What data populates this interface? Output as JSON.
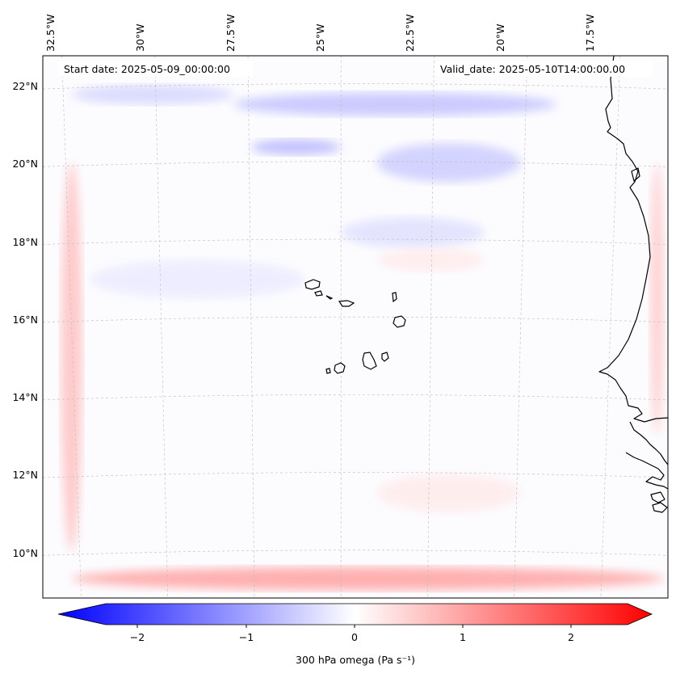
{
  "map": {
    "start_date_label": "Start date: 2025-05-09_00:00:00",
    "valid_date_label": "Valid_date: 2025-05-10T14:00:00.00",
    "lon_labels": [
      "32.5°W",
      "30°W",
      "27.5°W",
      "25°W",
      "22.5°W",
      "20°W",
      "17.5°W"
    ],
    "lat_labels": [
      "22°N",
      "20°N",
      "18°N",
      "16°N",
      "14°N",
      "12°N",
      "10°N"
    ],
    "grid": true,
    "coastline_color": "#000000"
  },
  "colorbar": {
    "label": "300 hPa omega (Pa s⁻¹)",
    "ticks": [
      "−2",
      "−1",
      "0",
      "1",
      "2"
    ],
    "tick_values": [
      -2,
      -1,
      0,
      1,
      2
    ],
    "range": [
      -2.5,
      2.5
    ],
    "extend": "both",
    "colormap": "bwr",
    "low_color": "#0000ff",
    "mid_color": "#ffffff",
    "high_color": "#ff0000"
  },
  "field": {
    "variable": "300 hPa omega",
    "background_value": 0,
    "features": [
      {
        "type": "negative-band",
        "lon": [
          -28,
          -19
        ],
        "lat": [
          21.2,
          21.8
        ],
        "value": -0.6
      },
      {
        "type": "negative-band",
        "lon": [
          -27.5,
          -25
        ],
        "lat": [
          20.2,
          20.6
        ],
        "value": -0.7
      },
      {
        "type": "negative-band",
        "lon": [
          -24,
          -20
        ],
        "lat": [
          19.5,
          20.5
        ],
        "value": -0.5
      },
      {
        "type": "negative-band",
        "lon": [
          -32.5,
          -28
        ],
        "lat": [
          21.5,
          22
        ],
        "value": -0.4
      },
      {
        "type": "negative-band",
        "lon": [
          -25,
          -21
        ],
        "lat": [
          17.8,
          18.6
        ],
        "value": -0.3
      },
      {
        "type": "negative-band",
        "lon": [
          -32,
          -26
        ],
        "lat": [
          16.5,
          17.5
        ],
        "value": -0.2
      },
      {
        "type": "positive-edge",
        "lon": [
          -32.8,
          -32.2
        ],
        "lat": [
          10,
          20
        ],
        "value": 0.6
      },
      {
        "type": "positive-edge",
        "lon": [
          -32.5,
          -16
        ],
        "lat": [
          9,
          9.6
        ],
        "value": 0.9
      },
      {
        "type": "positive-edge",
        "lon": [
          -16.4,
          -16.0
        ],
        "lat": [
          13,
          20
        ],
        "value": 0.5
      },
      {
        "type": "positive-band",
        "lon": [
          -24,
          -21
        ],
        "lat": [
          17.2,
          17.8
        ],
        "value": 0.2
      },
      {
        "type": "positive-band",
        "lon": [
          -24,
          -20
        ],
        "lat": [
          11,
          12
        ],
        "value": 0.2
      }
    ]
  }
}
